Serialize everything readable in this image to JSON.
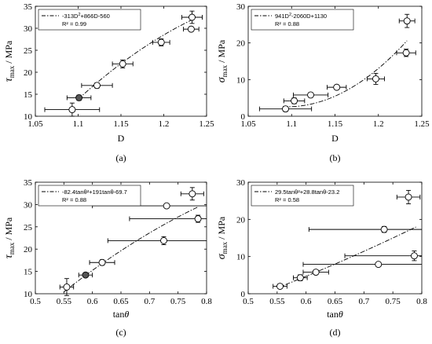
{
  "chart_data": [
    {
      "type": "scatter",
      "panel_label": "(a)",
      "xlabel": "D",
      "ylabel_sym": "τ",
      "ylabel_sub": "max",
      "ylabel_unit": " / MPa",
      "xlim": [
        1.05,
        1.25
      ],
      "ylim": [
        10,
        35
      ],
      "xticks": [
        "1.05",
        "1.1",
        "1.15",
        "1.2",
        "1.25"
      ],
      "yticks": [
        "10",
        "15",
        "20",
        "25",
        "30",
        "35"
      ],
      "legend_sup": {
        "pre": "-313D",
        "sup": "2",
        "post": "+866D-560"
      },
      "r2": "R² = 0.99",
      "points": [
        {
          "x": 1.093,
          "y": 11.5,
          "xerr": 0.032,
          "yerr": 1.5,
          "filled": false
        },
        {
          "x": 1.101,
          "y": 14.2,
          "xerr": 0.014,
          "yerr": 0.6,
          "filled": true
        },
        {
          "x": 1.122,
          "y": 17.0,
          "xerr": 0.018,
          "yerr": 0.6,
          "filled": false
        },
        {
          "x": 1.152,
          "y": 21.9,
          "xerr": 0.012,
          "yerr": 0.9,
          "filled": false
        },
        {
          "x": 1.197,
          "y": 26.8,
          "xerr": 0.01,
          "yerr": 0.8,
          "filled": false
        },
        {
          "x": 1.232,
          "y": 29.8,
          "xerr": 0.009,
          "yerr": 0.5,
          "filled": false
        },
        {
          "x": 1.233,
          "y": 32.5,
          "xerr": 0.012,
          "yerr": 1.4,
          "filled": false
        }
      ],
      "fit": {
        "type": "poly",
        "coeffs": [
          -560,
          866,
          -313
        ],
        "xrange": [
          1.1,
          1.235
        ]
      }
    },
    {
      "type": "scatter",
      "panel_label": "(b)",
      "xlabel": "D",
      "ylabel_sym": "σ",
      "ylabel_sub": "max",
      "ylabel_unit": " / MPa",
      "xlim": [
        1.05,
        1.25
      ],
      "ylim": [
        0,
        30
      ],
      "xticks": [
        "1.05",
        "1.1",
        "1.15",
        "1.2",
        "1.25"
      ],
      "yticks": [
        "0",
        "10",
        "20",
        "30"
      ],
      "legend_sup": {
        "pre": "941D",
        "sup": "2",
        "post": "-2060D+1130"
      },
      "r2": "R² = 0.88",
      "points": [
        {
          "x": 1.093,
          "y": 2.0,
          "xerr": 0.03,
          "yerr": 0.7,
          "filled": false
        },
        {
          "x": 1.103,
          "y": 4.2,
          "xerr": 0.012,
          "yerr": 0.8,
          "filled": false
        },
        {
          "x": 1.122,
          "y": 5.8,
          "xerr": 0.02,
          "yerr": 0.5,
          "filled": false
        },
        {
          "x": 1.152,
          "y": 7.9,
          "xerr": 0.011,
          "yerr": 0.6,
          "filled": false
        },
        {
          "x": 1.197,
          "y": 10.2,
          "xerr": 0.01,
          "yerr": 1.5,
          "filled": false
        },
        {
          "x": 1.232,
          "y": 17.3,
          "xerr": 0.011,
          "yerr": 1.0,
          "filled": false
        },
        {
          "x": 1.233,
          "y": 26.0,
          "xerr": 0.009,
          "yerr": 1.8,
          "filled": false
        }
      ],
      "fit": {
        "type": "poly",
        "coeffs": [
          1130,
          -2060,
          941
        ],
        "xrange": [
          1.09,
          1.233
        ]
      }
    },
    {
      "type": "scatter",
      "panel_label": "(c)",
      "xlabel": "tanθ",
      "ylabel_sym": "τ",
      "ylabel_sub": "max",
      "ylabel_unit": " / MPa",
      "xlim": [
        0.5,
        0.8
      ],
      "ylim": [
        10,
        35
      ],
      "xticks": [
        "0.5",
        "0.55",
        "0.6",
        "0.65",
        "0.7",
        "0.75",
        "0.8"
      ],
      "yticks": [
        "10",
        "15",
        "20",
        "25",
        "30",
        "35"
      ],
      "legend_sup": {
        "pre": "-82.4tan",
        "sup": "2",
        "post": "+191tan-69.7",
        "theta_positions": [
          8,
          18
        ]
      },
      "legend_text": "-82.4tanθ²+191tanθ-69.7",
      "r2": "R² = 0.88",
      "points": [
        {
          "x": 0.555,
          "y": 11.5,
          "xerr": 0.012,
          "yerr": 1.9,
          "filled": false
        },
        {
          "x": 0.588,
          "y": 14.2,
          "xerr": 0.012,
          "yerr": 0.5,
          "filled": true
        },
        {
          "x": 0.617,
          "y": 17.0,
          "xerr": 0.022,
          "yerr": 0.6,
          "filled": false
        },
        {
          "x": 0.725,
          "y": 21.9,
          "xerr": 0.098,
          "yerr": 0.9,
          "filled": false
        },
        {
          "x": 0.73,
          "y": 29.7,
          "xerr": 0.13,
          "yerr": 0.3,
          "filled": false
        },
        {
          "x": 0.785,
          "y": 26.8,
          "xerr": 0.12,
          "yerr": 0.8,
          "filled": false
        },
        {
          "x": 0.775,
          "y": 32.4,
          "xerr": 0.02,
          "yerr": 1.4,
          "filled": false
        }
      ],
      "fit": {
        "type": "poly",
        "coeffs": [
          -69.7,
          191,
          -82.4
        ],
        "xrange": [
          0.55,
          0.785
        ]
      }
    },
    {
      "type": "scatter",
      "panel_label": "(d)",
      "xlabel": "tanθ",
      "ylabel_sym": "σ",
      "ylabel_sub": "max",
      "ylabel_unit": " / MPa",
      "xlim": [
        0.5,
        0.8
      ],
      "ylim": [
        0,
        30
      ],
      "xticks": [
        "0.5",
        "0.55",
        "0.6",
        "0.65",
        "0.7",
        "0.75",
        "0.8"
      ],
      "yticks": [
        "0",
        "10",
        "20",
        "30"
      ],
      "legend_text": "29.5tanθ²+28.8tanθ-23.2",
      "r2": "R² = 0.58",
      "points": [
        {
          "x": 0.555,
          "y": 2.0,
          "xerr": 0.012,
          "yerr": 0.6,
          "filled": false
        },
        {
          "x": 0.59,
          "y": 4.3,
          "xerr": 0.012,
          "yerr": 0.8,
          "filled": false
        },
        {
          "x": 0.617,
          "y": 5.8,
          "xerr": 0.022,
          "yerr": 0.4,
          "filled": false
        },
        {
          "x": 0.725,
          "y": 7.9,
          "xerr": 0.13,
          "yerr": 0.3,
          "filled": false
        },
        {
          "x": 0.735,
          "y": 17.3,
          "xerr": 0.13,
          "yerr": 0.8,
          "filled": false
        },
        {
          "x": 0.787,
          "y": 10.2,
          "xerr": 0.12,
          "yerr": 1.3,
          "filled": false
        },
        {
          "x": 0.777,
          "y": 26.0,
          "xerr": 0.02,
          "yerr": 1.8,
          "filled": false
        }
      ],
      "fit": {
        "type": "poly",
        "coeffs": [
          -23.2,
          28.8,
          29.5
        ],
        "xrange": [
          0.55,
          0.79
        ]
      }
    }
  ]
}
